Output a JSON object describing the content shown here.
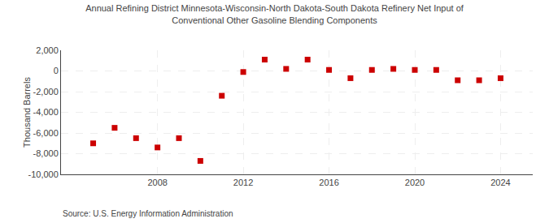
{
  "chart_data": {
    "type": "scatter",
    "title": "Annual Refining District Minnesota-Wisconsin-North Dakota-South Dakota Refinery Net Input of\nConventional Other Gasoline Blending Components",
    "ylabel": "Thousand Barrels",
    "annotations": [
      "Source: U.S. Energy Information Administration"
    ],
    "x": [
      2005,
      2006,
      2007,
      2008,
      2009,
      2010,
      2011,
      2012,
      2013,
      2014,
      2015,
      2016,
      2017,
      2018,
      2019,
      2020,
      2021,
      2022,
      2023,
      2024
    ],
    "values": [
      -7000,
      -5500,
      -6500,
      -7400,
      -6500,
      -8700,
      -2400,
      -100,
      1100,
      200,
      1100,
      100,
      -700,
      100,
      200,
      100,
      100,
      -900,
      -900,
      -700
    ],
    "color": "#cc0000",
    "marker": "square",
    "xlim": [
      2003.5,
      2025.5
    ],
    "xticks": [
      2008,
      2012,
      2016,
      2020,
      2024
    ],
    "ylim": [
      -10000,
      2000
    ],
    "yticks": [
      {
        "value": -10000,
        "label": "-10,000"
      },
      {
        "value": -8000,
        "label": "-8,000"
      },
      {
        "value": -6000,
        "label": "-6,000"
      },
      {
        "value": -4000,
        "label": "-4,000"
      },
      {
        "value": -2000,
        "label": "-2,000"
      },
      0,
      {
        "value": 2000,
        "label": "2,000"
      }
    ],
    "grid": true
  }
}
